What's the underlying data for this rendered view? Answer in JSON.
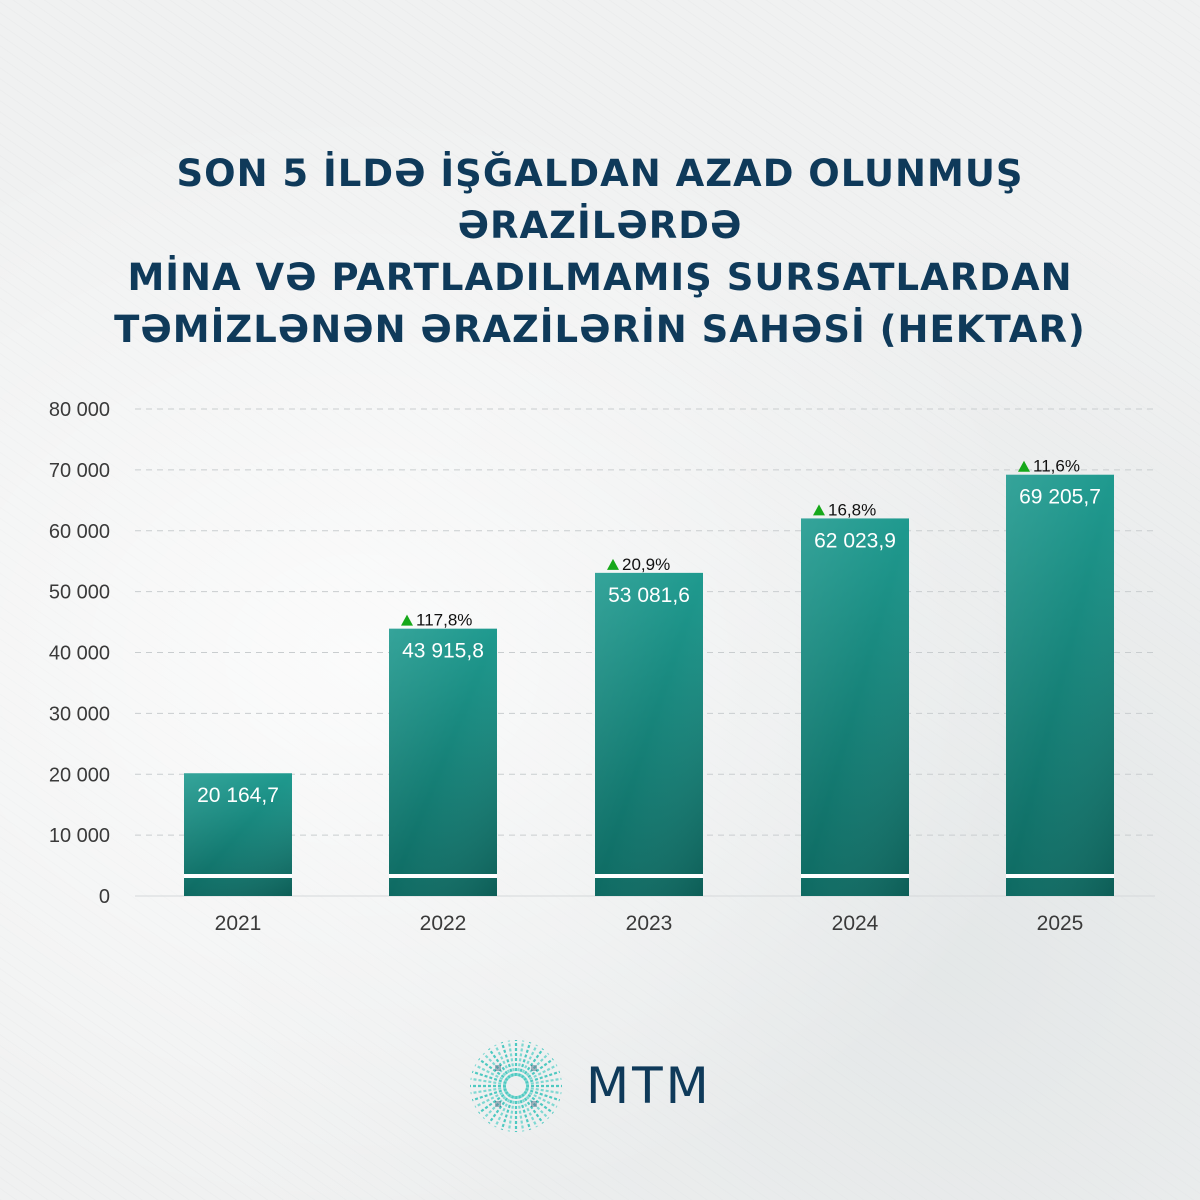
{
  "title_lines": [
    "SON 5 İLDƏ İŞĞALDAN AZAD OLUNMUŞ ƏRAZİLƏRDƏ",
    "MİNA VƏ PARTLADILMAMIŞ SURSATLARDAN",
    "TƏMİZLƏNƏN ƏRAZİLƏRİN SAHƏSİ (HEKTAR)"
  ],
  "chart_data": {
    "type": "bar",
    "title": "SON 5 İLDƏ İŞĞALDAN AZAD OLUNMUŞ ƏRAZİLƏRDƏ MİNA VƏ PARTLADILMAMIŞ SURSATLARDAN TƏMİZLƏNƏN ƏRAZİLƏRİN SAHƏSİ (HEKTAR)",
    "categories": [
      "2021",
      "2022",
      "2023",
      "2024",
      "2025"
    ],
    "values": [
      20164.7,
      43915.8,
      53081.6,
      62023.9,
      69205.7
    ],
    "value_labels": [
      "20 164,7",
      "43 915,8",
      "53 081,6",
      "62 023,9",
      "69 205,7"
    ],
    "growth_labels": [
      "",
      "117,8%",
      "20,9%",
      "16,8%",
      "11,6%"
    ],
    "yticks": [
      0,
      10000,
      20000,
      30000,
      40000,
      50000,
      60000,
      70000,
      80000
    ],
    "ytick_labels": [
      "0",
      "10 000",
      "20 000",
      "30 000",
      "40 000",
      "50 000",
      "60 000",
      "70 000",
      "80 000"
    ],
    "ylim": [
      0,
      80000
    ],
    "grid": true,
    "legend": false,
    "colors": {
      "bar_top": "#1f9a8f",
      "bar_bottom": "#0f6e66",
      "growth_arrow": "#16a81a",
      "axis_text": "#3a3a3a",
      "value_text": "#ffffff"
    }
  },
  "logo": {
    "text": "MTM",
    "icon": "radiating-lines-icon",
    "color_light": "#4ec9c1",
    "color_dark": "#0f3a5a"
  }
}
